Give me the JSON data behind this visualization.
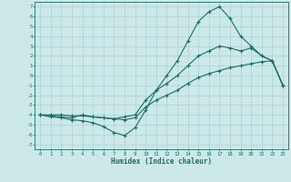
{
  "xlabel": "Humidex (Indice chaleur)",
  "ylabel": "",
  "xlim": [
    -0.5,
    23.5
  ],
  "ylim": [
    -7.5,
    7.5
  ],
  "xticks": [
    0,
    1,
    2,
    3,
    4,
    5,
    6,
    7,
    8,
    9,
    10,
    11,
    12,
    13,
    14,
    15,
    16,
    17,
    18,
    19,
    20,
    21,
    22,
    23
  ],
  "yticks": [
    7,
    6,
    5,
    4,
    3,
    2,
    1,
    0,
    -1,
    -2,
    -3,
    -4,
    -5,
    -6,
    -7
  ],
  "line_color": "#1a6e64",
  "bg_color": "#cce8e8",
  "grid_color": "#a8d4d4",
  "series1_x": [
    0,
    1,
    2,
    3,
    4,
    5,
    6,
    7,
    8,
    9,
    10,
    11,
    12,
    13,
    14,
    15,
    16,
    17,
    18,
    19,
    20,
    21,
    22,
    23
  ],
  "series1_y": [
    -4,
    -4.2,
    -4.3,
    -4.5,
    -4.6,
    -4.8,
    -5.2,
    -5.8,
    -6.1,
    -5.3,
    -3.5,
    -1.5,
    0.0,
    1.5,
    3.5,
    5.5,
    6.5,
    7.0,
    5.8,
    4.0,
    3.0,
    2.0,
    1.5,
    -1.0
  ],
  "series2_x": [
    0,
    1,
    2,
    3,
    4,
    5,
    6,
    7,
    8,
    9,
    10,
    11,
    12,
    13,
    14,
    15,
    16,
    17,
    18,
    19,
    20,
    21,
    22,
    23
  ],
  "series2_y": [
    -4,
    -4.1,
    -4.2,
    -4.3,
    -4.0,
    -4.2,
    -4.3,
    -4.4,
    -4.2,
    -4.0,
    -2.5,
    -1.5,
    -0.8,
    0.0,
    1.0,
    2.0,
    2.5,
    3.0,
    2.8,
    2.5,
    2.8,
    2.0,
    1.5,
    -1.0
  ],
  "series3_x": [
    0,
    1,
    2,
    3,
    4,
    5,
    6,
    7,
    8,
    9,
    10,
    11,
    12,
    13,
    14,
    15,
    16,
    17,
    18,
    19,
    20,
    21,
    22,
    23
  ],
  "series3_y": [
    -4,
    -4.0,
    -4.0,
    -4.1,
    -4.1,
    -4.2,
    -4.3,
    -4.4,
    -4.5,
    -4.3,
    -3.2,
    -2.5,
    -2.0,
    -1.5,
    -0.8,
    -0.2,
    0.2,
    0.5,
    0.8,
    1.0,
    1.2,
    1.4,
    1.5,
    -1.0
  ]
}
